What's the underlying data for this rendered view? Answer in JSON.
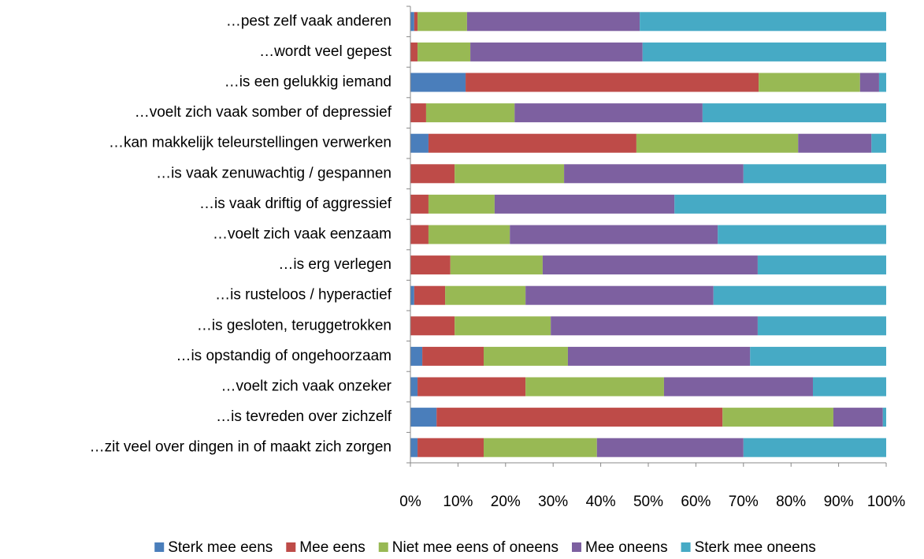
{
  "chart_data": {
    "type": "stacked-barh",
    "categories": [
      "…pest zelf vaak anderen",
      "…wordt veel gepest",
      "…is een gelukkig iemand",
      "…voelt zich vaak somber of depressief",
      "…kan makkelijk teleurstellingen verwerken",
      "…is vaak zenuwachtig / gespannen",
      "…is vaak driftig of aggressief",
      "…voelt zich vaak eenzaam",
      "…is erg verlegen",
      "…is rusteloos / hyperactief",
      "…is gesloten, teruggetrokken",
      "…is opstandig of ongehoorzaam",
      "…voelt zich vaak onzeker",
      "…is tevreden over zichzelf",
      "…zit veel over dingen in of maakt zich zorgen"
    ],
    "series": [
      {
        "name": "Sterk mee eens",
        "color": "#4a7ebb",
        "values": [
          0.8,
          0,
          11.6,
          0,
          3.8,
          0,
          0,
          0,
          0,
          0.8,
          0,
          2.5,
          1.5,
          5.5,
          1.5
        ]
      },
      {
        "name": "Mee eens",
        "color": "#be4b48",
        "values": [
          0.7,
          1.5,
          61.6,
          3.3,
          43.7,
          9.3,
          3.8,
          3.8,
          8.4,
          6.5,
          9.3,
          12.9,
          22.7,
          60.1,
          13.9
        ]
      },
      {
        "name": "Niet mee eens of oneens",
        "color": "#98b954",
        "values": [
          10.4,
          11.1,
          21.3,
          18.6,
          34.0,
          23.0,
          13.9,
          17.1,
          19.4,
          16.9,
          20.2,
          17.7,
          29.1,
          23.3,
          23.8
        ]
      },
      {
        "name": "Mee oneens",
        "color": "#7d60a0",
        "values": [
          36.3,
          36.2,
          4.0,
          39.5,
          15.4,
          37.7,
          37.8,
          43.7,
          45.2,
          39.5,
          43.5,
          38.3,
          31.3,
          10.4,
          30.8
        ]
      },
      {
        "name": "Sterk mee oneens",
        "color": "#46aac5",
        "values": [
          51.8,
          51.2,
          1.5,
          38.6,
          3.1,
          30.0,
          44.5,
          35.4,
          27.0,
          36.3,
          27.0,
          28.6,
          15.4,
          0.7,
          30.0
        ]
      }
    ],
    "xlim": [
      0,
      100
    ],
    "xticks": [
      {
        "value": 0,
        "label": "0%"
      },
      {
        "value": 10,
        "label": "10%"
      },
      {
        "value": 20,
        "label": "20%"
      },
      {
        "value": 30,
        "label": "30%"
      },
      {
        "value": 40,
        "label": "40%"
      },
      {
        "value": 50,
        "label": "50%"
      },
      {
        "value": 60,
        "label": "60%"
      },
      {
        "value": 70,
        "label": "70%"
      },
      {
        "value": 80,
        "label": "80%"
      },
      {
        "value": 90,
        "label": "90%"
      },
      {
        "value": 100,
        "label": "100%"
      }
    ],
    "legend": "bottom"
  }
}
